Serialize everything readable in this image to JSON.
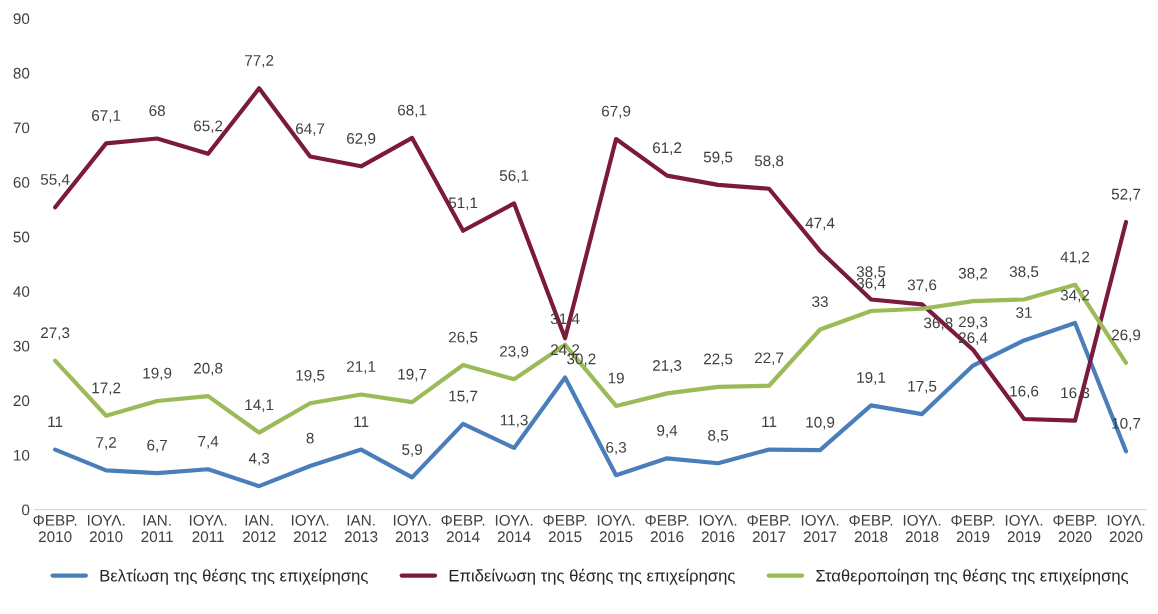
{
  "chart_data": {
    "type": "line",
    "categories": [
      "ΦΕΒΡ.\n2010",
      "ΙΟΥΛ.\n2010",
      "ΙΑΝ.\n2011",
      "ΙΟΥΛ.\n2011",
      "ΙΑΝ.\n2012",
      "ΙΟΥΛ.\n2012",
      "ΙΑΝ.\n2013",
      "ΙΟΥΛ.\n2013",
      "ΦΕΒΡ.\n2014",
      "ΙΟΥΛ.\n2014",
      "ΦΕΒΡ.\n2015",
      "ΙΟΥΛ.\n2015",
      "ΦΕΒΡ.\n2016",
      "ΙΟΥΛ.\n2016",
      "ΦΕΒΡ.\n2017",
      "ΙΟΥΛ.\n2017",
      "ΦΕΒΡ.\n2018",
      "ΙΟΥΛ.\n2018",
      "ΦΕΒΡ.\n2019",
      "ΙΟΥΛ.\n2019",
      "ΦΕΒΡ.\n2020",
      "ΙΟΥΛ.\n2020"
    ],
    "series": [
      {
        "name": "Βελτίωση της θέσης της επιχείρησης",
        "color": "#4a7ebb",
        "values": [
          11,
          7.2,
          6.7,
          7.4,
          4.3,
          8,
          11,
          5.9,
          15.7,
          11.3,
          24.2,
          6.3,
          9.4,
          8.5,
          11,
          10.9,
          19.1,
          17.5,
          26.4,
          31,
          34.2,
          10.7
        ],
        "value_labels": [
          "11",
          "7,2",
          "6,7",
          "7,4",
          "4,3",
          "8",
          "11",
          "5,9",
          "15,7",
          "11,3",
          "24,2",
          "6,3",
          "9,4",
          "8,5",
          "11",
          "10,9",
          "19,1",
          "17,5",
          "26,4",
          "31",
          "34,2",
          "10,7"
        ]
      },
      {
        "name": "Επιδείνωση της θέσης της επιχείρησης",
        "color": "#7b1a3e",
        "values": [
          55.4,
          67.1,
          68,
          65.2,
          77.2,
          64.7,
          62.9,
          68.1,
          51.1,
          56.1,
          31.4,
          67.9,
          61.2,
          59.5,
          58.8,
          47.4,
          38.5,
          37.6,
          29.3,
          16.6,
          16.3,
          52.7
        ],
        "value_labels": [
          "55,4",
          "67,1",
          "68",
          "65,2",
          "77,2",
          "64,7",
          "62,9",
          "68,1",
          "51,1",
          "56,1",
          "31,4",
          "67,9",
          "61,2",
          "59,5",
          "58,8",
          "47,4",
          "38,5",
          "37,6",
          "29,3",
          "16,6",
          "16,3",
          "52,7"
        ]
      },
      {
        "name": "Σταθεροποίηση της θέσης της επιχείρησης",
        "color": "#9bbb59",
        "values": [
          27.3,
          17.2,
          19.9,
          20.8,
          14.1,
          19.5,
          21.1,
          19.7,
          26.5,
          23.9,
          30.2,
          19,
          21.3,
          22.5,
          22.7,
          33,
          36.4,
          36.8,
          38.2,
          38.5,
          41.2,
          26.9
        ],
        "value_labels": [
          "27,3",
          "17,2",
          "19,9",
          "20,8",
          "14,1",
          "19,5",
          "21,1",
          "19,7",
          "26,5",
          "23,9",
          "30,2",
          "19",
          "21,3",
          "22,5",
          "22,7",
          "33",
          "36,4",
          "36,8",
          "38,2",
          "38,5",
          "41,2",
          "26,9"
        ]
      }
    ],
    "ylim": [
      0,
      90
    ],
    "yticks": [
      0,
      10,
      20,
      30,
      40,
      50,
      60,
      70,
      80,
      90
    ],
    "grid": false,
    "legend": "bottom",
    "marker": "none",
    "line_style": "solid"
  }
}
